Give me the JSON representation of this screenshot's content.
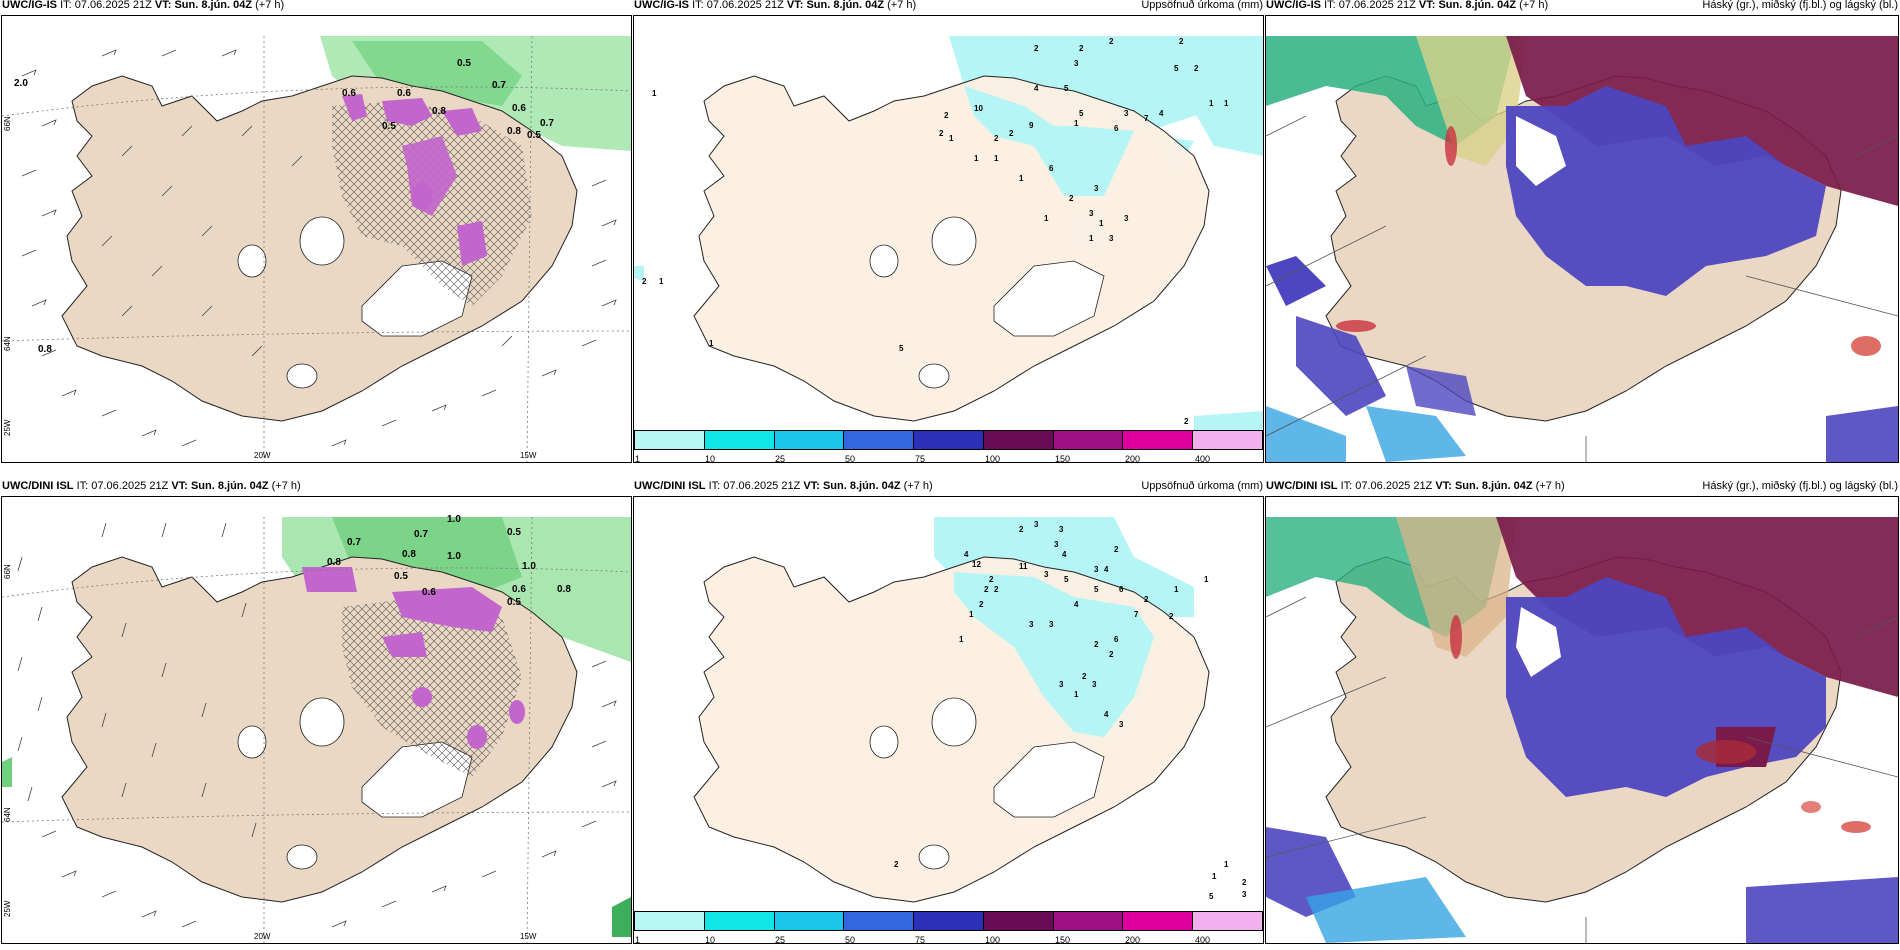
{
  "rows": [
    {
      "model": "UWC/IG-IS",
      "it_label": "IT:",
      "it_value": "07.06.2025 21Z",
      "vt_label": "VT:",
      "vt_value": "Sun. 8.jún. 04Z",
      "lead": "(+7 h)",
      "wind_labels": [
        "2.0",
        "0.5",
        "0.6",
        "0.6",
        "0.7",
        "0.8",
        "0.6",
        "0.8",
        "0.7",
        "0.5",
        "0.5",
        "0.8"
      ],
      "precip_labels": [
        "1",
        "2",
        "2",
        "2",
        "2",
        "3",
        "5",
        "4",
        "9",
        "10",
        "2",
        "1",
        "2",
        "5",
        "3",
        "6",
        "2",
        "1",
        "1",
        "2",
        "1",
        "1",
        "6",
        "1",
        "3",
        "3",
        "2",
        "1",
        "3",
        "3",
        "1",
        "7",
        "4",
        "5",
        "2",
        "1",
        "1",
        "2",
        "1",
        "1",
        "5",
        "2"
      ],
      "lon_labels": [
        "20W",
        "15W"
      ],
      "lat_labels": [
        "66N",
        "64N",
        "25W"
      ]
    },
    {
      "model": "UWC/DINI ISL",
      "it_label": "IT:",
      "it_value": "07.06.2025 21Z",
      "vt_label": "VT:",
      "vt_value": "Sun. 8.jún. 04Z",
      "lead": "(+7 h)",
      "wind_labels": [
        "0.7",
        "0.8",
        "0.7",
        "1.0",
        "0.5",
        "1.0",
        "0.8",
        "0.6",
        "1.0",
        "0.5",
        "0.8",
        "0.6",
        "0.5"
      ],
      "precip_labels": [
        "2",
        "3",
        "3",
        "3",
        "4",
        "12",
        "11",
        "3",
        "4",
        "2",
        "2",
        "5",
        "3",
        "2",
        "4",
        "5",
        "6",
        "4",
        "3",
        "3",
        "2",
        "1",
        "2",
        "6",
        "2",
        "2",
        "2",
        "7",
        "2",
        "1",
        "2",
        "1",
        "3",
        "4",
        "1",
        "3",
        "1",
        "1",
        "1",
        "2",
        "3",
        "5",
        "2",
        "3"
      ],
      "lon_labels": [
        "20W",
        "15W"
      ],
      "lat_labels": [
        "66N",
        "64N",
        "25W"
      ]
    }
  ],
  "precip_title": "Uppsöfnuð úrkoma (mm)",
  "cloud_title": "Háský (gr.), miðský (fj.bl.) og lágský (bl.)",
  "colorbar": {
    "colors": [
      "#b8f6f6",
      "#13e6e6",
      "#1cc6ea",
      "#3367e0",
      "#2c30b8",
      "#6b0a55",
      "#a01085",
      "#e000a0",
      "#f3b0ef"
    ],
    "labels": [
      "1",
      "10",
      "25",
      "50",
      "75",
      "100",
      "150",
      "200",
      "400"
    ]
  },
  "colors": {
    "land": "#ead8c4",
    "precip_land": "#fcefe2",
    "sea": "#ffffff",
    "green_shade": "#7fd88a",
    "purple_shade": "#c265cc",
    "cyan_shade": "#b6f5f6",
    "high_cloud": "#7a1a4a",
    "mid_cloud": "#4d46c0",
    "low_cloud": "#36a4e4"
  }
}
